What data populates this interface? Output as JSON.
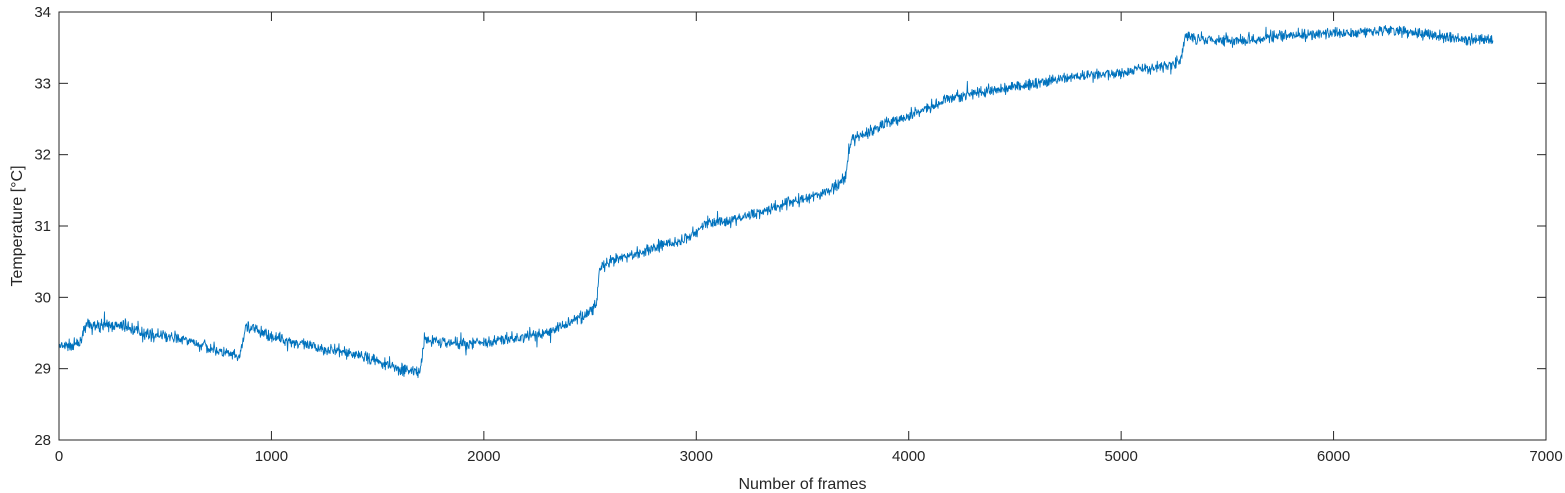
{
  "chart_data": {
    "type": "line",
    "title": "",
    "xlabel": "Number of frames",
    "ylabel": "Temperature [°C]",
    "xlim": [
      0,
      7000
    ],
    "ylim": [
      28,
      34
    ],
    "x_ticks": [
      0,
      1000,
      2000,
      3000,
      4000,
      5000,
      6000,
      7000
    ],
    "y_ticks": [
      28,
      29,
      30,
      31,
      32,
      33,
      34
    ],
    "grid": false,
    "line_color": "#0072BD",
    "noise_amplitude": 0.1,
    "series": [
      {
        "x": [
          0,
          100,
          120,
          300,
          400,
          600,
          850,
          880,
          1000,
          1200,
          1400,
          1600,
          1700,
          1720,
          1900,
          2100,
          2300,
          2500,
          2530,
          2545,
          2600,
          2800,
          2950,
          3050,
          3200,
          3400,
          3600,
          3700,
          3730,
          3800,
          3900,
          4000,
          4200,
          4400,
          4600,
          4800,
          5000,
          5200,
          5280,
          5300,
          5500,
          5700,
          5900,
          6100,
          6250,
          6400,
          6600,
          6750
        ],
        "y": [
          29.3,
          29.35,
          29.6,
          29.6,
          29.5,
          29.4,
          29.15,
          29.6,
          29.45,
          29.3,
          29.2,
          29.0,
          28.95,
          29.4,
          29.35,
          29.4,
          29.5,
          29.8,
          29.9,
          30.4,
          30.5,
          30.7,
          30.8,
          31.05,
          31.1,
          31.3,
          31.45,
          31.65,
          32.2,
          32.3,
          32.45,
          32.55,
          32.8,
          32.9,
          33.0,
          33.1,
          33.15,
          33.25,
          33.3,
          33.65,
          33.6,
          33.65,
          33.68,
          33.72,
          33.75,
          33.7,
          33.62,
          33.6
        ]
      }
    ]
  }
}
